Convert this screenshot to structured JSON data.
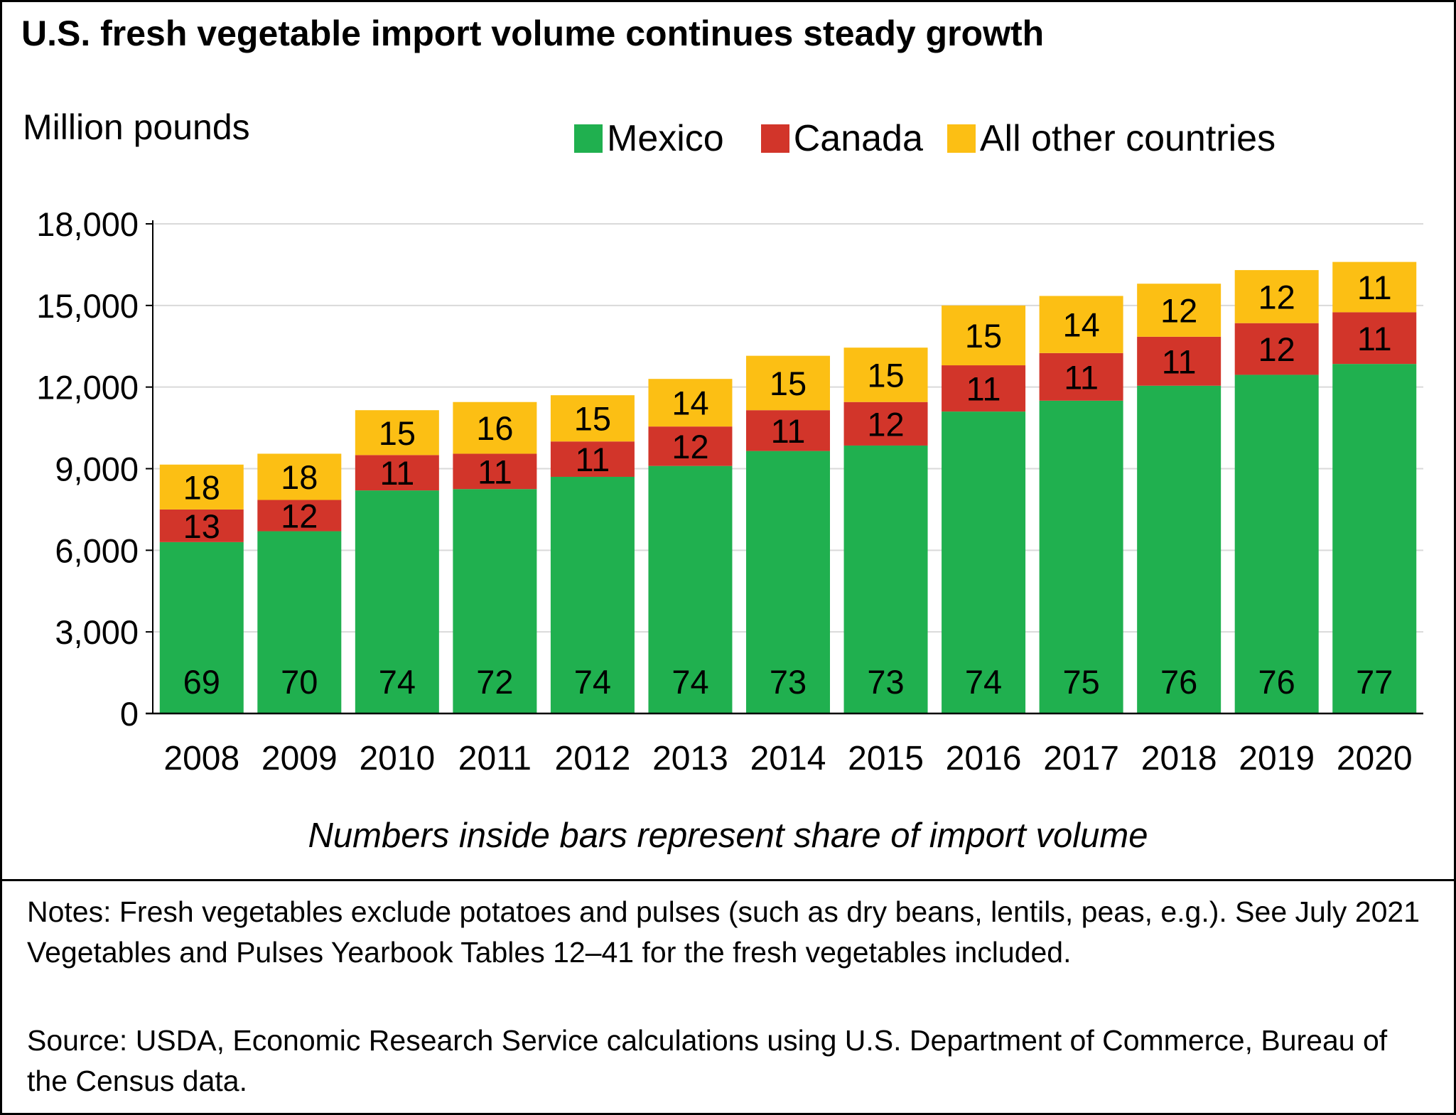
{
  "title": "U.S. fresh vegetable import volume continues steady growth",
  "unit_label": "Million pounds",
  "footnote": "Numbers inside bars represent share of import volume",
  "notes": "Notes: Fresh vegetables exclude potatoes and pulses (such as dry beans, lentils, peas, e.g.). See July 2021 Vegetables and Pulses Yearbook Tables 12–41 for the fresh vegetables included.",
  "source": "Source: USDA, Economic Research Service calculations using U.S. Department of Commerce, Bureau of the Census data.",
  "colors": {
    "mexico": "#20b04f",
    "canada": "#d2352a",
    "other": "#fcbf14",
    "grid": "#d9d9d9",
    "axis": "#000000"
  },
  "chart_data": {
    "type": "bar",
    "stacked": true,
    "title": "U.S. fresh vegetable import volume continues steady growth",
    "ylabel": "Million pounds",
    "xlabel": "",
    "ylim": [
      0,
      18000
    ],
    "yticks": [
      0,
      3000,
      6000,
      9000,
      12000,
      15000,
      18000
    ],
    "ytick_labels": [
      "0",
      "3,000",
      "6,000",
      "9,000",
      "12,000",
      "15,000",
      "18,000"
    ],
    "grid": true,
    "legend_position": "top-right",
    "categories": [
      "2008",
      "2009",
      "2010",
      "2011",
      "2012",
      "2013",
      "2014",
      "2015",
      "2016",
      "2017",
      "2018",
      "2019",
      "2020"
    ],
    "series": [
      {
        "name": "Mexico",
        "values": [
          6300,
          6700,
          8200,
          8250,
          8700,
          9100,
          9650,
          9850,
          11100,
          11500,
          12050,
          12450,
          12850
        ],
        "share_labels": [
          "69",
          "70",
          "74",
          "72",
          "74",
          "74",
          "73",
          "73",
          "74",
          "75",
          "76",
          "76",
          "77"
        ]
      },
      {
        "name": "Canada",
        "values": [
          1200,
          1150,
          1300,
          1300,
          1300,
          1450,
          1500,
          1600,
          1700,
          1750,
          1800,
          1900,
          1900
        ],
        "share_labels": [
          "13",
          "12",
          "11",
          "11",
          "11",
          "12",
          "11",
          "12",
          "11",
          "11",
          "11",
          "12",
          "11"
        ]
      },
      {
        "name": "All other countries",
        "values": [
          1650,
          1700,
          1650,
          1900,
          1700,
          1750,
          2000,
          2000,
          2200,
          2100,
          1950,
          1950,
          1850
        ],
        "share_labels": [
          "18",
          "18",
          "15",
          "16",
          "15",
          "14",
          "15",
          "15",
          "15",
          "14",
          "12",
          "12",
          "11"
        ]
      }
    ]
  }
}
